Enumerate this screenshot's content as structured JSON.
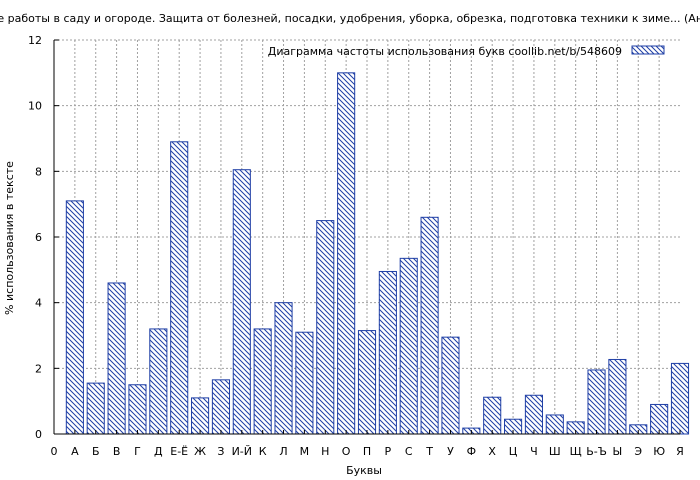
{
  "chart_data": {
    "type": "bar",
    "title": "ние работы в саду и огороде. Защита от болезней, посадки, удобрения, уборка, обрезка, подготовка техники к зиме... (Анна",
    "xlabel": "Буквы",
    "ylabel": "% использования в тексте",
    "ylim": [
      0,
      12
    ],
    "yticks": [
      0,
      2,
      4,
      6,
      8,
      10,
      12
    ],
    "grid": true,
    "legend": {
      "label": "Диаграмма частоты использования букв  coollib.net/b/548609",
      "position": "top-right"
    },
    "first_tick_label": "0",
    "categories": [
      "А",
      "Б",
      "В",
      "Г",
      "Д",
      "Е-Ё",
      "Ж",
      "З",
      "И-Й",
      "К",
      "Л",
      "М",
      "Н",
      "О",
      "П",
      "Р",
      "С",
      "Т",
      "У",
      "Ф",
      "Х",
      "Ц",
      "Ч",
      "Ш",
      "Щ",
      "Ь-Ъ",
      "Ы",
      "Э",
      "Ю",
      "Я"
    ],
    "values": [
      7.1,
      1.55,
      4.6,
      1.5,
      3.2,
      8.9,
      1.1,
      1.65,
      8.05,
      3.2,
      4.0,
      3.1,
      6.5,
      11.0,
      3.15,
      4.95,
      5.35,
      6.6,
      2.95,
      0.18,
      1.12,
      0.45,
      1.18,
      0.58,
      0.37,
      1.95,
      2.27,
      0.28,
      0.9,
      2.15
    ],
    "colors": {
      "bar_stroke": "#1f3fa6",
      "hatch": "#1f3fa6",
      "grid": "#a0a0a0"
    }
  }
}
